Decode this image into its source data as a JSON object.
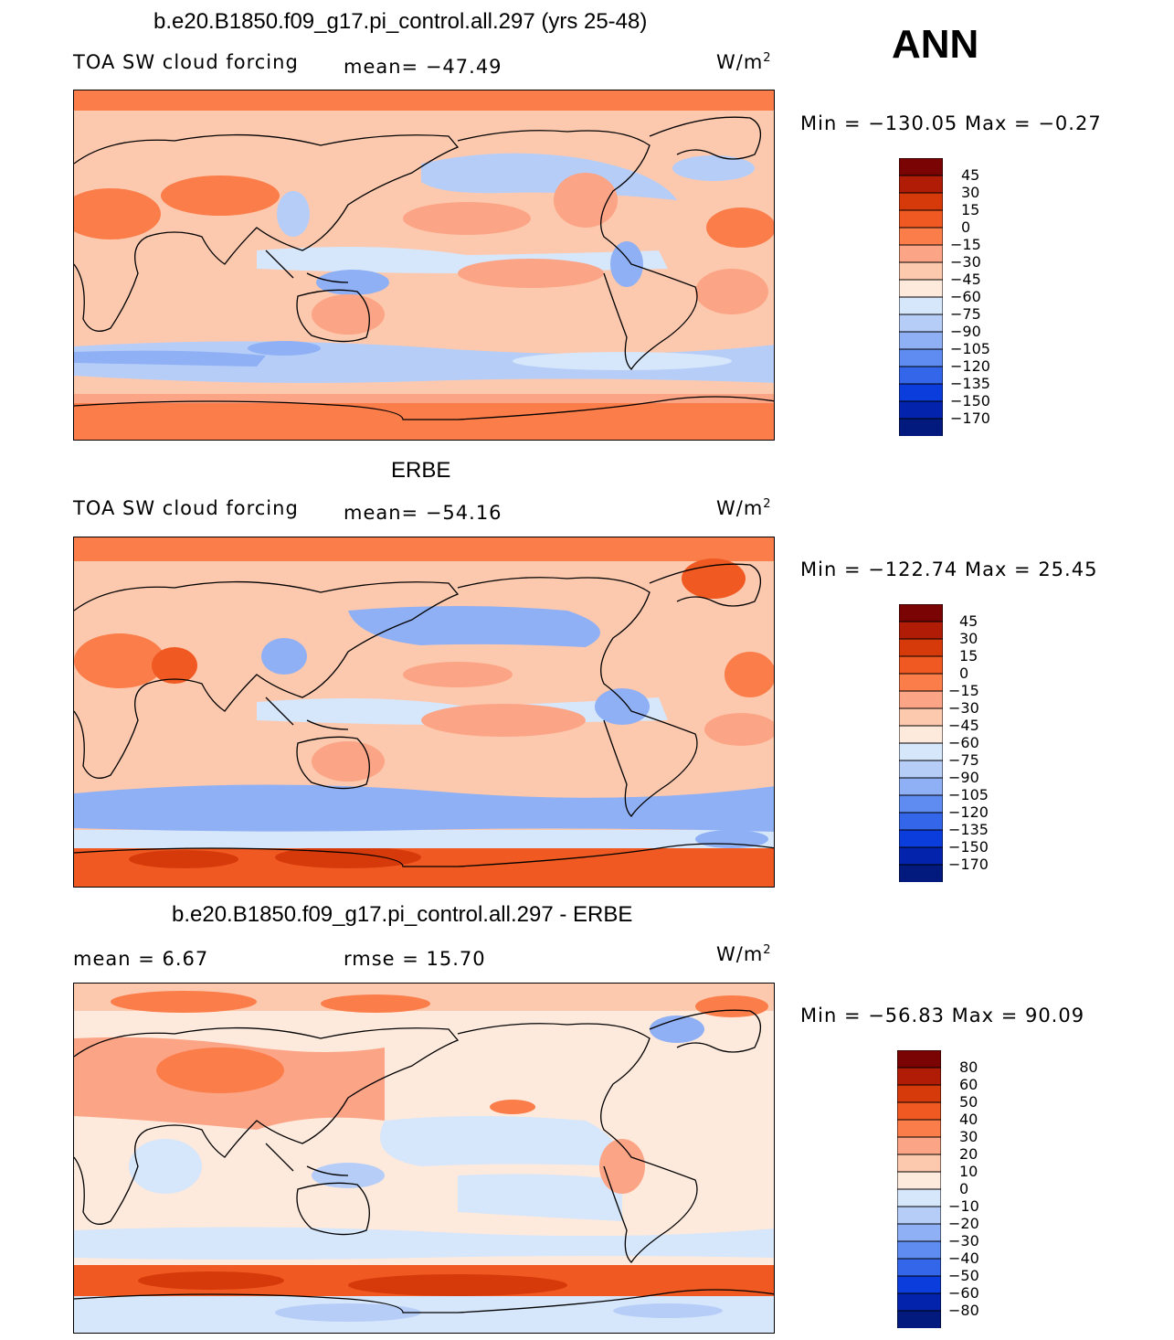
{
  "header": {
    "season": "ANN"
  },
  "units": {
    "prefix": "W/m",
    "exponent": "2"
  },
  "panels": [
    {
      "title": "b.e20.B1850.f09_g17.pi_control.all.297 (yrs 25-48)",
      "label_left": "TOA SW cloud forcing",
      "stat_text": "mean=  −47.49",
      "range_text": "Min  =  −130.05  Max  =     −0.27",
      "colorbar": {
        "labels": [
          "45",
          "30",
          "15",
          "0",
          "−15",
          "−30",
          "−45",
          "−60",
          "−75",
          "−90",
          "−105",
          "−120",
          "−135",
          "−150",
          "−170"
        ],
        "colors": [
          "#7a0403",
          "#b01c05",
          "#d73a0a",
          "#f05a22",
          "#fb7d4a",
          "#fca486",
          "#fdc9ae",
          "#feeadd",
          "#d6e6fb",
          "#b6cdf8",
          "#8fb0f4",
          "#5e8cf0",
          "#3466ea",
          "#0b3ddc",
          "#0423ad",
          "#021a7e"
        ]
      },
      "chart_data": {
        "type": "heatmap",
        "kind": "filled-contour world map",
        "variable": "TOA SW cloud forcing",
        "units": "W/m2",
        "mean": -47.49,
        "min": -130.05,
        "max": -0.27,
        "contour_levels": [
          45,
          30,
          15,
          0,
          -15,
          -30,
          -45,
          -60,
          -75,
          -90,
          -105,
          -120,
          -135,
          -150,
          -170
        ]
      }
    },
    {
      "title": "ERBE",
      "label_left": "TOA SW cloud forcing",
      "stat_text": "mean=  −54.16",
      "range_text": "Min  =  −122.74  Max  =    25.45",
      "colorbar": {
        "labels": [
          "45",
          "30",
          "15",
          "0",
          "−15",
          "−30",
          "−45",
          "−60",
          "−75",
          "−90",
          "−105",
          "−120",
          "−135",
          "−150",
          "−170"
        ],
        "colors": [
          "#7a0403",
          "#b01c05",
          "#d73a0a",
          "#f05a22",
          "#fb7d4a",
          "#fca486",
          "#fdc9ae",
          "#feeadd",
          "#d6e6fb",
          "#b6cdf8",
          "#8fb0f4",
          "#5e8cf0",
          "#3466ea",
          "#0b3ddc",
          "#0423ad",
          "#021a7e"
        ]
      },
      "chart_data": {
        "type": "heatmap",
        "kind": "filled-contour world map",
        "variable": "TOA SW cloud forcing",
        "units": "W/m2",
        "mean": -54.16,
        "min": -122.74,
        "max": 25.45,
        "contour_levels": [
          45,
          30,
          15,
          0,
          -15,
          -30,
          -45,
          -60,
          -75,
          -90,
          -105,
          -120,
          -135,
          -150,
          -170
        ]
      }
    },
    {
      "title": "b.e20.B1850.f09_g17.pi_control.all.297 - ERBE",
      "label_left": "mean  =      6.67",
      "stat_text": "rmse  =     15.70",
      "range_text": "Min  =  −56.83  Max  =    90.09",
      "colorbar": {
        "labels": [
          "80",
          "60",
          "50",
          "40",
          "30",
          "20",
          "10",
          "0",
          "−10",
          "−20",
          "−30",
          "−40",
          "−50",
          "−60",
          "−80"
        ],
        "colors": [
          "#7a0403",
          "#b01c05",
          "#d73a0a",
          "#f05a22",
          "#fb7d4a",
          "#fca486",
          "#fdc9ae",
          "#feeadd",
          "#d6e6fb",
          "#b6cdf8",
          "#8fb0f4",
          "#5e8cf0",
          "#3466ea",
          "#0b3ddc",
          "#0423ad",
          "#021a7e"
        ]
      },
      "chart_data": {
        "type": "heatmap",
        "kind": "filled-contour world map (difference)",
        "variable": "TOA SW cloud forcing difference",
        "units": "W/m2",
        "mean": 6.67,
        "rmse": 15.7,
        "min": -56.83,
        "max": 90.09,
        "contour_levels": [
          80,
          60,
          50,
          40,
          30,
          20,
          10,
          0,
          -10,
          -20,
          -30,
          -40,
          -50,
          -60,
          -80
        ]
      }
    }
  ]
}
